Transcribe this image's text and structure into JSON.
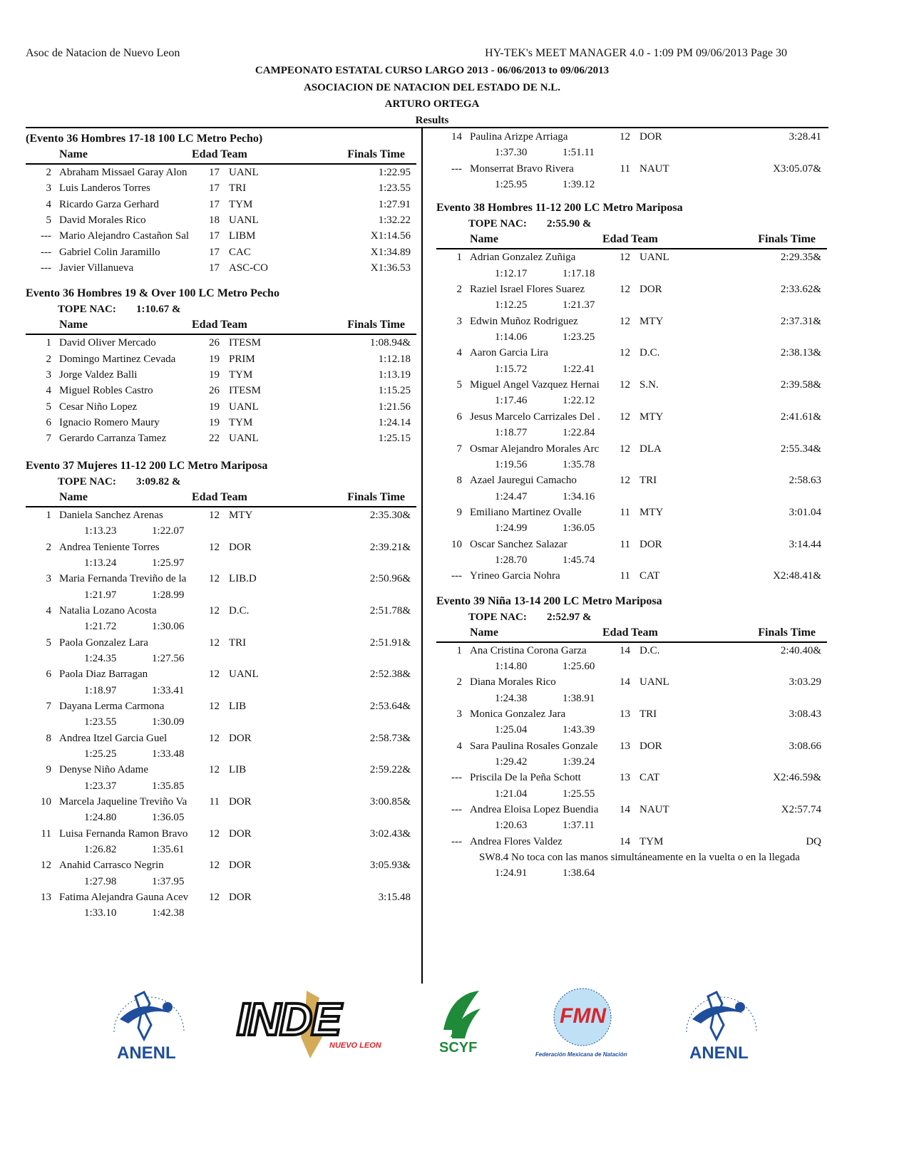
{
  "header": {
    "org": "Asoc de Natacion de Nuevo Leon",
    "software": "HY-TEK's MEET MANAGER 4.0 - 1:09 PM  09/06/2013  Page 30",
    "title1": "CAMPEONATO ESTATAL CURSO LARGO 2013 - 06/06/2013 to 09/06/2013",
    "title2": "ASOCIACION DE NATACION DEL ESTADO DE N.L.",
    "title3": "ARTURO ORTEGA",
    "results": "Results"
  },
  "columns_header": {
    "name": "Name",
    "age_team": "Edad Team",
    "time": "Finals Time"
  },
  "left": [
    {
      "title": "(Evento 36  Hombres 17-18 100 LC Metro Pecho)",
      "rows": [
        {
          "p": "2",
          "n": "Abraham Missael Garay Alon",
          "a": "17",
          "t": "UANL",
          "f": "1:22.95"
        },
        {
          "p": "3",
          "n": "Luis Landeros Torres",
          "a": "17",
          "t": "TRI",
          "f": "1:23.55"
        },
        {
          "p": "4",
          "n": "Ricardo Garza Gerhard",
          "a": "17",
          "t": "TYM",
          "f": "1:27.91"
        },
        {
          "p": "5",
          "n": "David Morales Rico",
          "a": "18",
          "t": "UANL",
          "f": "1:32.22"
        },
        {
          "p": "---",
          "n": "Mario Alejandro Castañon Sal",
          "a": "17",
          "t": "LIBM",
          "f": "X1:14.56"
        },
        {
          "p": "---",
          "n": "Gabriel Colin Jaramillo",
          "a": "17",
          "t": "CAC",
          "f": "X1:34.89"
        },
        {
          "p": "---",
          "n": "Javier Villanueva",
          "a": "17",
          "t": "ASC-CO",
          "f": "X1:36.53"
        }
      ]
    },
    {
      "title": "Evento 36  Hombres 19 & Over 100 LC Metro Pecho",
      "tope_label": "TOPE NAC:",
      "tope": "1:10.67  &",
      "rows": [
        {
          "p": "1",
          "n": "David Oliver Mercado",
          "a": "26",
          "t": "ITESM",
          "f": "1:08.94&"
        },
        {
          "p": "2",
          "n": "Domingo Martinez Cevada",
          "a": "19",
          "t": "PRIM",
          "f": "1:12.18"
        },
        {
          "p": "3",
          "n": "Jorge Valdez Balli",
          "a": "19",
          "t": "TYM",
          "f": "1:13.19"
        },
        {
          "p": "4",
          "n": "Miguel Robles Castro",
          "a": "26",
          "t": "ITESM",
          "f": "1:15.25"
        },
        {
          "p": "5",
          "n": "Cesar Niño Lopez",
          "a": "19",
          "t": "UANL",
          "f": "1:21.56"
        },
        {
          "p": "6",
          "n": "Ignacio Romero Maury",
          "a": "19",
          "t": "TYM",
          "f": "1:24.14"
        },
        {
          "p": "7",
          "n": "Gerardo Carranza Tamez",
          "a": "22",
          "t": "UANL",
          "f": "1:25.15"
        }
      ]
    },
    {
      "title": "Evento 37  Mujeres 11-12 200 LC Metro Mariposa",
      "tope_label": "TOPE NAC:",
      "tope": "3:09.82  &",
      "rows": [
        {
          "p": "1",
          "n": "Daniela Sanchez Arenas",
          "a": "12",
          "t": "MTY",
          "f": "2:35.30&",
          "s": [
            "1:13.23",
            "1:22.07"
          ]
        },
        {
          "p": "2",
          "n": "Andrea Teniente Torres",
          "a": "12",
          "t": "DOR",
          "f": "2:39.21&",
          "s": [
            "1:13.24",
            "1:25.97"
          ]
        },
        {
          "p": "3",
          "n": "Maria Fernanda Treviño de la",
          "a": "12",
          "t": "LIB.D",
          "f": "2:50.96&",
          "s": [
            "1:21.97",
            "1:28.99"
          ]
        },
        {
          "p": "4",
          "n": "Natalia Lozano Acosta",
          "a": "12",
          "t": "D.C.",
          "f": "2:51.78&",
          "s": [
            "1:21.72",
            "1:30.06"
          ]
        },
        {
          "p": "5",
          "n": "Paola Gonzalez Lara",
          "a": "12",
          "t": "TRI",
          "f": "2:51.91&",
          "s": [
            "1:24.35",
            "1:27.56"
          ]
        },
        {
          "p": "6",
          "n": "Paola Diaz Barragan",
          "a": "12",
          "t": "UANL",
          "f": "2:52.38&",
          "s": [
            "1:18.97",
            "1:33.41"
          ]
        },
        {
          "p": "7",
          "n": "Dayana Lerma Carmona",
          "a": "12",
          "t": "LIB",
          "f": "2:53.64&",
          "s": [
            "1:23.55",
            "1:30.09"
          ]
        },
        {
          "p": "8",
          "n": "Andrea Itzel Garcia Guel",
          "a": "12",
          "t": "DOR",
          "f": "2:58.73&",
          "s": [
            "1:25.25",
            "1:33.48"
          ]
        },
        {
          "p": "9",
          "n": "Denyse Niño Adame",
          "a": "12",
          "t": "LIB",
          "f": "2:59.22&",
          "s": [
            "1:23.37",
            "1:35.85"
          ]
        },
        {
          "p": "10",
          "n": "Marcela Jaqueline Treviño Va",
          "a": "11",
          "t": "DOR",
          "f": "3:00.85&",
          "s": [
            "1:24.80",
            "1:36.05"
          ]
        },
        {
          "p": "11",
          "n": "Luisa Fernanda Ramon Bravo",
          "a": "12",
          "t": "DOR",
          "f": "3:02.43&",
          "s": [
            "1:26.82",
            "1:35.61"
          ]
        },
        {
          "p": "12",
          "n": "Anahid Carrasco  Negrin",
          "a": "12",
          "t": "DOR",
          "f": "3:05.93&",
          "s": [
            "1:27.98",
            "1:37.95"
          ]
        },
        {
          "p": "13",
          "n": "Fatima Alejandra Gauna Acev",
          "a": "12",
          "t": "DOR",
          "f": "3:15.48",
          "s": [
            "1:33.10",
            "1:42.38"
          ]
        }
      ]
    }
  ],
  "right": [
    {
      "rows": [
        {
          "p": "14",
          "n": "Paulina Arizpe Arriaga",
          "a": "12",
          "t": "DOR",
          "f": "3:28.41",
          "s": [
            "1:37.30",
            "1:51.11"
          ]
        },
        {
          "p": "---",
          "n": "Monserrat Bravo Rivera",
          "a": "11",
          "t": "NAUT",
          "f": "X3:05.07&",
          "s": [
            "1:25.95",
            "1:39.12"
          ]
        }
      ]
    },
    {
      "title": "Evento 38  Hombres 11-12 200 LC Metro Mariposa",
      "tope_label": "TOPE NAC:",
      "tope": "2:55.90  &",
      "rows": [
        {
          "p": "1",
          "n": "Adrian Gonzalez Zuñiga",
          "a": "12",
          "t": "UANL",
          "f": "2:29.35&",
          "s": [
            "1:12.17",
            "1:17.18"
          ]
        },
        {
          "p": "2",
          "n": "Raziel Israel Flores Suarez",
          "a": "12",
          "t": "DOR",
          "f": "2:33.62&",
          "s": [
            "1:12.25",
            "1:21.37"
          ]
        },
        {
          "p": "3",
          "n": "Edwin Muñoz Rodriguez",
          "a": "12",
          "t": "MTY",
          "f": "2:37.31&",
          "s": [
            "1:14.06",
            "1:23.25"
          ]
        },
        {
          "p": "4",
          "n": "Aaron Garcia Lira",
          "a": "12",
          "t": "D.C.",
          "f": "2:38.13&",
          "s": [
            "1:15.72",
            "1:22.41"
          ]
        },
        {
          "p": "5",
          "n": "Miguel Angel Vazquez Hernai",
          "a": "12",
          "t": "S.N.",
          "f": "2:39.58&",
          "s": [
            "1:17.46",
            "1:22.12"
          ]
        },
        {
          "p": "6",
          "n": "Jesus Marcelo Carrizales Del .",
          "a": "12",
          "t": "MTY",
          "f": "2:41.61&",
          "s": [
            "1:18.77",
            "1:22.84"
          ]
        },
        {
          "p": "7",
          "n": "Osmar Alejandro Morales Arc",
          "a": "12",
          "t": "DLA",
          "f": "2:55.34&",
          "s": [
            "1:19.56",
            "1:35.78"
          ]
        },
        {
          "p": "8",
          "n": "Azael Jauregui Camacho",
          "a": "12",
          "t": "TRI",
          "f": "2:58.63",
          "s": [
            "1:24.47",
            "1:34.16"
          ]
        },
        {
          "p": "9",
          "n": "Emiliano Martinez Ovalle",
          "a": "11",
          "t": "MTY",
          "f": "3:01.04",
          "s": [
            "1:24.99",
            "1:36.05"
          ]
        },
        {
          "p": "10",
          "n": "Oscar Sanchez Salazar",
          "a": "11",
          "t": "DOR",
          "f": "3:14.44",
          "s": [
            "1:28.70",
            "1:45.74"
          ]
        },
        {
          "p": "---",
          "n": "Yrineo Garcia Nohra",
          "a": "11",
          "t": "CAT",
          "f": "X2:48.41&"
        }
      ]
    },
    {
      "title": "Evento 39  Niña 13-14 200 LC Metro Mariposa",
      "tope_label": "TOPE NAC:",
      "tope": "2:52.97  &",
      "rows": [
        {
          "p": "1",
          "n": "Ana Cristina Corona Garza",
          "a": "14",
          "t": "D.C.",
          "f": "2:40.40&",
          "s": [
            "1:14.80",
            "1:25.60"
          ]
        },
        {
          "p": "2",
          "n": "Diana Morales Rico",
          "a": "14",
          "t": "UANL",
          "f": "3:03.29",
          "s": [
            "1:24.38",
            "1:38.91"
          ]
        },
        {
          "p": "3",
          "n": "Monica Gonzalez Jara",
          "a": "13",
          "t": "TRI",
          "f": "3:08.43",
          "s": [
            "1:25.04",
            "1:43.39"
          ]
        },
        {
          "p": "4",
          "n": "Sara Paulina Rosales Gonzale",
          "a": "13",
          "t": "DOR",
          "f": "3:08.66",
          "s": [
            "1:29.42",
            "1:39.24"
          ]
        },
        {
          "p": "---",
          "n": "Priscila De la Peña Schott",
          "a": "13",
          "t": "CAT",
          "f": "X2:46.59&",
          "s": [
            "1:21.04",
            "1:25.55"
          ]
        },
        {
          "p": "---",
          "n": "Andrea Eloisa Lopez Buendia",
          "a": "14",
          "t": "NAUT",
          "f": "X2:57.74",
          "s": [
            "1:20.63",
            "1:37.11"
          ]
        },
        {
          "p": "---",
          "n": "Andrea Flores Valdez",
          "a": "14",
          "t": "TYM",
          "f": "DQ",
          "note": "SW8.4 No toca con las manos simultáneamente en la vuelta o en la llegada",
          "s": [
            "1:24.91",
            "1:38.64"
          ]
        }
      ]
    }
  ],
  "logos": {
    "anenl": "ANENL",
    "anenl_ring": "Asociación de Natación del Estado de Nuevo León",
    "inde": "INDE",
    "inde_sub": "NUEVO LEON",
    "scyf": "SCYF",
    "fmn": "FMN",
    "fmn_sub": "Federación Mexicana de Natación"
  },
  "colors": {
    "anenl_blue": "#1f4e9c",
    "scyf_green": "#1f8a3a",
    "fmn_red": "#d8262c",
    "fmn_green": "#1e8c3c",
    "inde_gold": "#c9962e"
  }
}
